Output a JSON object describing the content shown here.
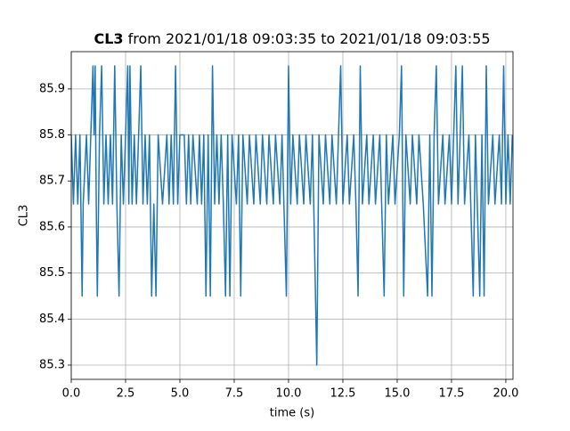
{
  "chart_data": {
    "type": "line",
    "title": {
      "bold": "CL3",
      "rest": " from 2021/01/18 09:03:35 to 2021/01/18 09:03:55"
    },
    "x_label": "time (s)",
    "y_label": "CL3",
    "grid": true,
    "xlim": [
      0,
      20.33
    ],
    "ylim": [
      85.269,
      85.981
    ],
    "xticks": [
      {
        "value": 0,
        "label": "0.0"
      },
      2.5,
      {
        "value": 5,
        "label": "5.0"
      },
      7.5,
      {
        "value": 10,
        "label": "10.0"
      },
      12.5,
      {
        "value": 15,
        "label": "15.0"
      },
      17.5,
      {
        "value": 20,
        "label": "20.0"
      }
    ],
    "yticks": [
      85.3,
      85.4,
      85.5,
      85.6,
      85.7,
      85.8,
      85.9
    ],
    "series": [
      {
        "color": "#1f77b4",
        "x": [
          0.0,
          0.1,
          0.2,
          0.3,
          0.4,
          0.5,
          0.55,
          0.7,
          0.8,
          0.9,
          1.0,
          1.05,
          1.1,
          1.15,
          1.2,
          1.3,
          1.4,
          1.5,
          1.6,
          1.7,
          1.8,
          1.9,
          2.0,
          2.1,
          2.2,
          2.3,
          2.4,
          2.5,
          2.6,
          2.65,
          2.7,
          2.8,
          2.9,
          3.0,
          3.1,
          3.2,
          3.3,
          3.4,
          3.5,
          3.6,
          3.7,
          3.8,
          3.9,
          4.0,
          4.2,
          4.4,
          4.5,
          4.6,
          4.7,
          4.8,
          4.9,
          5.0,
          5.2,
          5.3,
          5.4,
          5.5,
          5.6,
          5.8,
          5.9,
          6.0,
          6.1,
          6.2,
          6.3,
          6.4,
          6.5,
          6.6,
          6.7,
          6.8,
          6.9,
          7.0,
          7.1,
          7.2,
          7.3,
          7.4,
          7.6,
          7.7,
          7.8,
          7.9,
          8.1,
          8.2,
          8.4,
          8.5,
          8.7,
          8.8,
          9.0,
          9.1,
          9.3,
          9.4,
          9.6,
          9.7,
          9.9,
          10.0,
          10.1,
          10.2,
          10.4,
          10.5,
          10.7,
          10.8,
          11.0,
          11.1,
          11.3,
          11.4,
          11.6,
          11.7,
          11.9,
          12.0,
          12.2,
          12.4,
          12.5,
          12.7,
          12.8,
          13.0,
          13.1,
          13.2,
          13.3,
          13.4,
          13.6,
          13.7,
          13.9,
          14.0,
          14.2,
          14.4,
          14.5,
          14.6,
          14.8,
          14.9,
          15.1,
          15.2,
          15.3,
          15.4,
          15.6,
          15.7,
          15.9,
          16.0,
          16.2,
          16.4,
          16.5,
          16.6,
          16.7,
          16.8,
          16.9,
          17.1,
          17.2,
          17.4,
          17.5,
          17.7,
          17.8,
          18.0,
          18.1,
          18.3,
          18.5,
          18.6,
          18.8,
          18.9,
          19.0,
          19.1,
          19.2,
          19.4,
          19.5,
          19.7,
          19.8,
          19.9,
          20.0,
          20.1,
          20.2,
          20.3
        ],
        "values": [
          85.8,
          85.65,
          85.8,
          85.65,
          85.8,
          85.45,
          85.65,
          85.8,
          85.65,
          85.8,
          85.95,
          85.8,
          85.95,
          85.65,
          85.45,
          85.8,
          85.95,
          85.65,
          85.8,
          85.65,
          85.8,
          85.65,
          85.95,
          85.65,
          85.45,
          85.8,
          85.65,
          85.8,
          85.95,
          85.65,
          85.95,
          85.65,
          85.8,
          85.65,
          85.8,
          85.95,
          85.65,
          85.8,
          85.65,
          85.8,
          85.45,
          85.65,
          85.45,
          85.8,
          85.65,
          85.8,
          85.65,
          85.8,
          85.65,
          85.95,
          85.65,
          85.8,
          85.8,
          85.65,
          85.8,
          85.65,
          85.8,
          85.65,
          85.8,
          85.65,
          85.8,
          85.45,
          85.8,
          85.45,
          85.95,
          85.65,
          85.8,
          85.65,
          85.8,
          85.65,
          85.45,
          85.8,
          85.45,
          85.8,
          85.65,
          85.8,
          85.45,
          85.8,
          85.65,
          85.8,
          85.65,
          85.8,
          85.65,
          85.8,
          85.65,
          85.8,
          85.65,
          85.8,
          85.65,
          85.8,
          85.45,
          85.95,
          85.65,
          85.8,
          85.65,
          85.8,
          85.65,
          85.8,
          85.65,
          85.8,
          85.3,
          85.8,
          85.65,
          85.8,
          85.65,
          85.8,
          85.65,
          85.95,
          85.65,
          85.8,
          85.65,
          85.8,
          85.65,
          85.45,
          85.95,
          85.65,
          85.8,
          85.65,
          85.8,
          85.65,
          85.8,
          85.45,
          85.8,
          85.65,
          85.8,
          85.65,
          85.8,
          85.95,
          85.45,
          85.8,
          85.65,
          85.8,
          85.65,
          85.8,
          85.65,
          85.45,
          85.8,
          85.45,
          85.8,
          85.95,
          85.65,
          85.8,
          85.65,
          85.8,
          85.65,
          85.95,
          85.65,
          85.95,
          85.65,
          85.8,
          85.45,
          85.8,
          85.45,
          85.8,
          85.45,
          85.95,
          85.65,
          85.8,
          85.65,
          85.8,
          85.65,
          85.95,
          85.65,
          85.8,
          85.65,
          85.8
        ]
      }
    ]
  }
}
